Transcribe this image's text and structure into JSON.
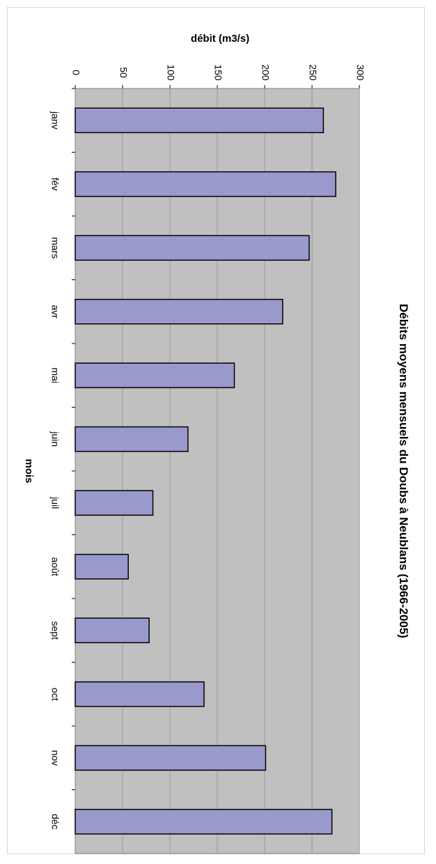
{
  "chart_data": {
    "type": "bar",
    "orientation": "horizontal-bars, page rotated 90°",
    "title": "Débits moyens mensuels du Doubs à Neublans (1966-2005)",
    "xlabel": "mois",
    "ylabel": "débit (m3/s)",
    "categories": [
      "janv",
      "fév",
      "mars",
      "avr",
      "mai",
      "juin",
      "juil",
      "août",
      "sept",
      "oct",
      "nov",
      "déc"
    ],
    "values": [
      262,
      275,
      247,
      219,
      168,
      119,
      82,
      56,
      78,
      136,
      201,
      271
    ],
    "ylim": [
      0,
      300
    ],
    "yticks": [
      "0",
      "50",
      "100",
      "150",
      "200",
      "250",
      "300"
    ],
    "grid": true,
    "legend": "none",
    "colors": {
      "bar_fill": "#9999cc",
      "bar_stroke": "#000000",
      "plot_background": "#c0c0c0",
      "gridline": "#9a9a9a"
    }
  }
}
